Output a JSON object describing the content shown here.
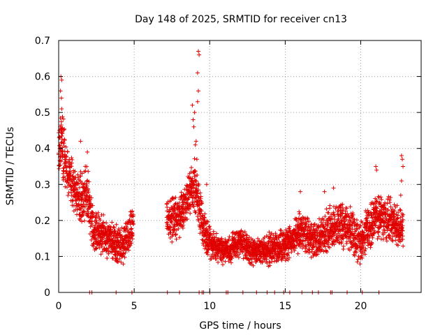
{
  "chart_data": {
    "type": "scatter",
    "title": "Day 148 of 2025, SRMTID for receiver cn13",
    "xlabel": "GPS time / hours",
    "ylabel": "SRMTID / TECUs",
    "xlim": [
      0,
      24
    ],
    "ylim": [
      0,
      0.7
    ],
    "xticks": [
      0,
      5,
      10,
      15,
      20
    ],
    "xtick_labels": [
      "0",
      "5",
      "10",
      "15",
      "20"
    ],
    "yticks": [
      0,
      0.1,
      0.2,
      0.3,
      0.4,
      0.5,
      0.6,
      0.7
    ],
    "ytick_labels": [
      "0",
      "0.1",
      "0.2",
      "0.3",
      "0.4",
      "0.5",
      "0.6",
      "0.7"
    ],
    "grid": true,
    "marker": "plus",
    "color": "#e00000",
    "series": [
      {
        "name": "SRMTID",
        "envelope": [
          {
            "x": 0.0,
            "base": 0.36,
            "spread": 0.09
          },
          {
            "x": 0.2,
            "base": 0.42,
            "spread": 0.12
          },
          {
            "x": 0.5,
            "base": 0.34,
            "spread": 0.08
          },
          {
            "x": 1.0,
            "base": 0.29,
            "spread": 0.08
          },
          {
            "x": 1.5,
            "base": 0.26,
            "spread": 0.08
          },
          {
            "x": 1.9,
            "base": 0.28,
            "spread": 0.09
          },
          {
            "x": 2.3,
            "base": 0.17,
            "spread": 0.06
          },
          {
            "x": 3.0,
            "base": 0.16,
            "spread": 0.06
          },
          {
            "x": 3.6,
            "base": 0.14,
            "spread": 0.06
          },
          {
            "x": 4.2,
            "base": 0.13,
            "spread": 0.06
          },
          {
            "x": 4.9,
            "base": 0.18,
            "spread": 0.06
          },
          {
            "x": 7.2,
            "base": 0.21,
            "spread": 0.07
          },
          {
            "x": 7.8,
            "base": 0.2,
            "spread": 0.07
          },
          {
            "x": 8.4,
            "base": 0.25,
            "spread": 0.07
          },
          {
            "x": 9.0,
            "base": 0.3,
            "spread": 0.08
          },
          {
            "x": 9.6,
            "base": 0.17,
            "spread": 0.07
          },
          {
            "x": 10.0,
            "base": 0.14,
            "spread": 0.05
          },
          {
            "x": 11.0,
            "base": 0.11,
            "spread": 0.04
          },
          {
            "x": 12.0,
            "base": 0.14,
            "spread": 0.05
          },
          {
            "x": 13.0,
            "base": 0.11,
            "spread": 0.04
          },
          {
            "x": 14.0,
            "base": 0.12,
            "spread": 0.05
          },
          {
            "x": 15.0,
            "base": 0.13,
            "spread": 0.05
          },
          {
            "x": 16.0,
            "base": 0.17,
            "spread": 0.06
          },
          {
            "x": 17.0,
            "base": 0.14,
            "spread": 0.06
          },
          {
            "x": 18.0,
            "base": 0.18,
            "spread": 0.07
          },
          {
            "x": 19.0,
            "base": 0.19,
            "spread": 0.07
          },
          {
            "x": 20.0,
            "base": 0.14,
            "spread": 0.07
          },
          {
            "x": 21.0,
            "base": 0.21,
            "spread": 0.07
          },
          {
            "x": 22.0,
            "base": 0.2,
            "spread": 0.07
          },
          {
            "x": 22.8,
            "base": 0.17,
            "spread": 0.06
          }
        ],
        "gaps": [
          [
            4.95,
            7.15
          ]
        ],
        "spikes": [
          {
            "x": 0.15,
            "y": 0.6
          },
          {
            "x": 0.2,
            "y": 0.59
          },
          {
            "x": 0.12,
            "y": 0.56
          },
          {
            "x": 0.18,
            "y": 0.54
          },
          {
            "x": 0.2,
            "y": 0.51
          },
          {
            "x": 0.1,
            "y": 0.46
          },
          {
            "x": 0.05,
            "y": 0.45
          },
          {
            "x": 1.45,
            "y": 0.42
          },
          {
            "x": 1.9,
            "y": 0.39
          },
          {
            "x": 8.85,
            "y": 0.52
          },
          {
            "x": 8.9,
            "y": 0.48
          },
          {
            "x": 9.0,
            "y": 0.5
          },
          {
            "x": 8.95,
            "y": 0.46
          },
          {
            "x": 9.1,
            "y": 0.42
          },
          {
            "x": 9.2,
            "y": 0.53
          },
          {
            "x": 9.25,
            "y": 0.56
          },
          {
            "x": 9.2,
            "y": 0.61
          },
          {
            "x": 9.25,
            "y": 0.67
          },
          {
            "x": 9.3,
            "y": 0.66
          },
          {
            "x": 9.15,
            "y": 0.37
          },
          {
            "x": 9.05,
            "y": 0.41
          },
          {
            "x": 21.0,
            "y": 0.35
          },
          {
            "x": 21.05,
            "y": 0.34
          },
          {
            "x": 22.7,
            "y": 0.38
          },
          {
            "x": 22.75,
            "y": 0.37
          },
          {
            "x": 22.8,
            "y": 0.35
          },
          {
            "x": 22.7,
            "y": 0.31
          },
          {
            "x": 22.65,
            "y": 0.27
          },
          {
            "x": 9.8,
            "y": 0.3
          },
          {
            "x": 18.2,
            "y": 0.29
          },
          {
            "x": 17.6,
            "y": 0.28
          },
          {
            "x": 16.0,
            "y": 0.28
          }
        ],
        "zero_points": [
          2.05,
          2.2,
          3.8,
          4.85,
          7.2,
          8.0,
          9.3,
          9.5,
          9.6,
          10.0,
          11.1,
          11.2,
          12.2,
          13.1,
          13.8,
          14.3,
          14.9,
          15.3,
          16.1,
          16.8,
          17.2,
          18.0,
          18.1,
          19.1,
          20.1,
          21.2
        ]
      }
    ]
  }
}
